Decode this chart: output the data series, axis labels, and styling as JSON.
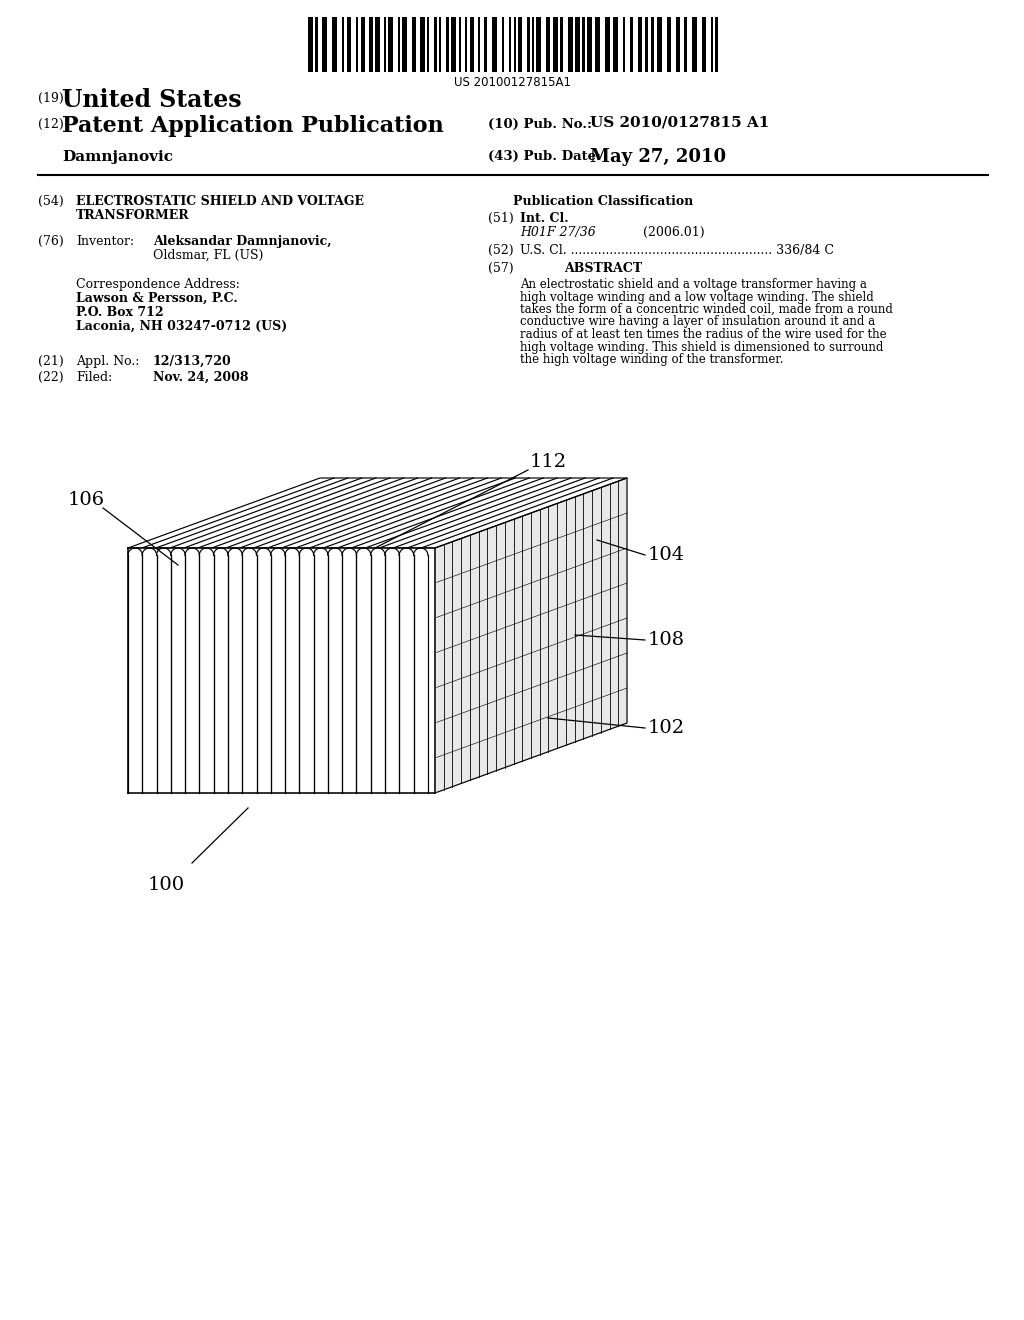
{
  "bg_color": "#ffffff",
  "barcode_text": "US 20100127815A1",
  "pub_no_value": "US 2010/0127815 A1",
  "pub_date_value": "May 27, 2010",
  "abstract_lines": [
    "An electrostatic shield and a voltage transformer having a",
    "high voltage winding and a low voltage winding. The shield",
    "takes the form of a concentric winded coil, made from a round",
    "conductive wire having a layer of insulation around it and a",
    "radius of at least ten times the radius of the wire used for the",
    "high voltage winding. This shield is dimensioned to surround",
    "the high voltage winding of the transformer."
  ],
  "field_51_class": "H01F 27/36",
  "field_51_year": "(2006.01)",
  "field_21_value": "12/313,720",
  "field_22_value": "Nov. 24, 2008",
  "label_100": "100",
  "label_102": "102",
  "label_104": "104",
  "label_106": "106",
  "label_108": "108",
  "label_112": "112"
}
